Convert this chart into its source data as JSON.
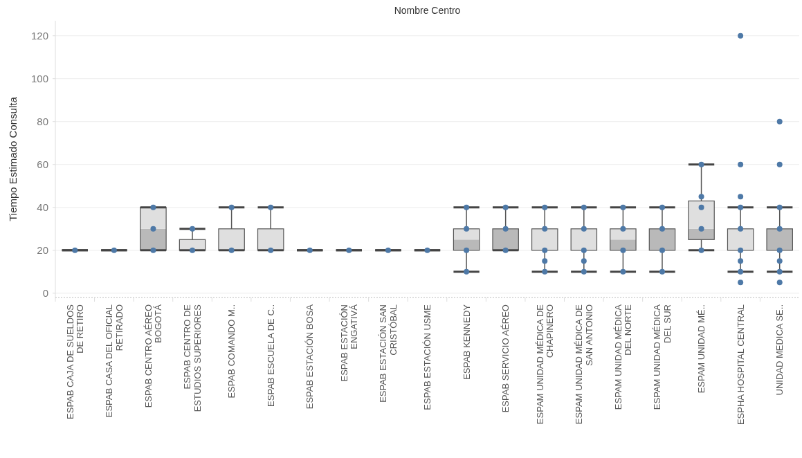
{
  "chart_data": {
    "type": "box",
    "title": "Nombre Centro",
    "ylabel": "Tiempo Estimado Consulta",
    "categories": [
      "ESPAB CAJA DE SUELDOS DE RETIRO",
      "ESPAB CASA DEL OFICIAL RETIRADO",
      "ESPAB CENTRO AÉREO BOGOTÁ",
      "ESPAB CENTRO DE ESTUDIOS SUPERIORES",
      "ESPAB COMANDO M..",
      "ESPAB ESCUELA DE C..",
      "ESPAB ESTACIÓN BOSA",
      "ESPAB ESTACIÓN ENGATIVÁ",
      "ESPAB ESTACIÓN SAN CRISTÓBAL",
      "ESPAB ESTACIÓN USME",
      "ESPAB KENNEDY",
      "ESPAB SERVICIO AÉREO",
      "ESPAM UNIDAD MÉDICA DE CHAPINERO",
      "ESPAM UNIDAD MÉDICA DE SAN ANTONIO",
      "ESPAM UNIDAD MÉDICA DEL NORTE",
      "ESPAM UNIDAD MÉDICA DEL SUR",
      "ESPAM UNIDAD MÉ..",
      "ESPHA HOSPITAL CENTRAL",
      "UNIDAD MEDICA SE.."
    ],
    "boxes": [
      {
        "low": 20,
        "q1": 20,
        "median": 20,
        "q3": 20,
        "high": 20
      },
      {
        "low": 20,
        "q1": 20,
        "median": 20,
        "q3": 20,
        "high": 20
      },
      {
        "low": 20,
        "q1": 20,
        "median": 30,
        "q3": 40,
        "high": 40
      },
      {
        "low": 20,
        "q1": 20,
        "median": 20,
        "q3": 25,
        "high": 30
      },
      {
        "low": 20,
        "q1": 20,
        "median": 20,
        "q3": 30,
        "high": 40
      },
      {
        "low": 20,
        "q1": 20,
        "median": 20,
        "q3": 30,
        "high": 40
      },
      {
        "low": 20,
        "q1": 20,
        "median": 20,
        "q3": 20,
        "high": 20
      },
      {
        "low": 20,
        "q1": 20,
        "median": 20,
        "q3": 20,
        "high": 20
      },
      {
        "low": 20,
        "q1": 20,
        "median": 20,
        "q3": 20,
        "high": 20
      },
      {
        "low": 20,
        "q1": 20,
        "median": 20,
        "q3": 20,
        "high": 20
      },
      {
        "low": 10,
        "q1": 20,
        "median": 25,
        "q3": 30,
        "high": 40
      },
      {
        "low": 20,
        "q1": 20,
        "median": 30,
        "q3": 30,
        "high": 40
      },
      {
        "low": 10,
        "q1": 20,
        "median": 20,
        "q3": 30,
        "high": 40
      },
      {
        "low": 10,
        "q1": 20,
        "median": 20,
        "q3": 30,
        "high": 40
      },
      {
        "low": 10,
        "q1": 20,
        "median": 25,
        "q3": 30,
        "high": 40
      },
      {
        "low": 10,
        "q1": 20,
        "median": 30,
        "q3": 30,
        "high": 40
      },
      {
        "low": 20,
        "q1": 25,
        "median": 30,
        "q3": 43,
        "high": 60
      },
      {
        "low": 10,
        "q1": 20,
        "median": 20,
        "q3": 30,
        "high": 40,
        "outliers": [
          5,
          45,
          60,
          120
        ]
      },
      {
        "low": 10,
        "q1": 20,
        "median": 30,
        "q3": 30,
        "high": 40,
        "outliers": [
          5,
          60,
          80
        ]
      }
    ],
    "series": [
      {
        "type": "scatter",
        "color": "#4e79a7",
        "x": [
          "ESPAB CAJA DE SUELDOS DE RETIRO",
          "ESPAB CASA DEL OFICIAL RETIRADO",
          "ESPAB CENTRO AÉREO BOGOTÁ",
          "ESPAB CENTRO AÉREO BOGOTÁ",
          "ESPAB CENTRO AÉREO BOGOTÁ",
          "ESPAB CENTRO DE ESTUDIOS SUPERIORES",
          "ESPAB CENTRO DE ESTUDIOS SUPERIORES",
          "ESPAB COMANDO M..",
          "ESPAB COMANDO M..",
          "ESPAB ESCUELA DE C..",
          "ESPAB ESCUELA DE C..",
          "ESPAB ESTACIÓN BOSA",
          "ESPAB ESTACIÓN ENGATIVÁ",
          "ESPAB ESTACIÓN SAN CRISTÓBAL",
          "ESPAB ESTACIÓN USME",
          "ESPAB KENNEDY",
          "ESPAB KENNEDY",
          "ESPAB KENNEDY",
          "ESPAB KENNEDY",
          "ESPAB SERVICIO AÉREO",
          "ESPAB SERVICIO AÉREO",
          "ESPAB SERVICIO AÉREO",
          "ESPAM UNIDAD MÉDICA DE CHAPINERO",
          "ESPAM UNIDAD MÉDICA DE CHAPINERO",
          "ESPAM UNIDAD MÉDICA DE CHAPINERO",
          "ESPAM UNIDAD MÉDICA DE CHAPINERO",
          "ESPAM UNIDAD MÉDICA DE CHAPINERO",
          "ESPAM UNIDAD MÉDICA DE SAN ANTONIO",
          "ESPAM UNIDAD MÉDICA DE SAN ANTONIO",
          "ESPAM UNIDAD MÉDICA DE SAN ANTONIO",
          "ESPAM UNIDAD MÉDICA DE SAN ANTONIO",
          "ESPAM UNIDAD MÉDICA DE SAN ANTONIO",
          "ESPAM UNIDAD MÉDICA DEL NORTE",
          "ESPAM UNIDAD MÉDICA DEL NORTE",
          "ESPAM UNIDAD MÉDICA DEL NORTE",
          "ESPAM UNIDAD MÉDICA DEL NORTE",
          "ESPAM UNIDAD MÉDICA DEL SUR",
          "ESPAM UNIDAD MÉDICA DEL SUR",
          "ESPAM UNIDAD MÉDICA DEL SUR",
          "ESPAM UNIDAD MÉDICA DEL SUR",
          "ESPAM UNIDAD MÉ..",
          "ESPAM UNIDAD MÉ..",
          "ESPAM UNIDAD MÉ..",
          "ESPAM UNIDAD MÉ..",
          "ESPAM UNIDAD MÉ..",
          "ESPHA HOSPITAL CENTRAL",
          "ESPHA HOSPITAL CENTRAL",
          "ESPHA HOSPITAL CENTRAL",
          "ESPHA HOSPITAL CENTRAL",
          "ESPHA HOSPITAL CENTRAL",
          "UNIDAD MEDICA SE..",
          "UNIDAD MEDICA SE..",
          "UNIDAD MEDICA SE..",
          "UNIDAD MEDICA SE..",
          "UNIDAD MEDICA SE.."
        ],
        "values": [
          20,
          20,
          20,
          30,
          40,
          20,
          30,
          20,
          40,
          20,
          40,
          20,
          20,
          20,
          20,
          10,
          20,
          30,
          40,
          20,
          30,
          40,
          10,
          15,
          20,
          30,
          40,
          10,
          15,
          20,
          30,
          40,
          10,
          20,
          30,
          40,
          10,
          20,
          30,
          40,
          20,
          30,
          40,
          45,
          60,
          10,
          15,
          20,
          30,
          40,
          10,
          15,
          20,
          30,
          40
        ]
      }
    ],
    "colors": [
      "#444444",
      "#444444",
      "#b9b9b9",
      "#dfdfdf",
      "#dfdfdf",
      "#dfdfdf",
      "#444444",
      "#444444",
      "#444444",
      "#444444",
      "#b9b9b9",
      "#b9b9b9",
      "#dfdfdf",
      "#dfdfdf",
      "#b9b9b9",
      "#b9b9b9",
      "#b9b9b9",
      "#dfdfdf",
      "#b9b9b9"
    ],
    "ylim": [
      -2,
      127
    ],
    "yticks": [
      0,
      20,
      40,
      60,
      80,
      100,
      120
    ],
    "grid": "y",
    "marker": "circle"
  }
}
